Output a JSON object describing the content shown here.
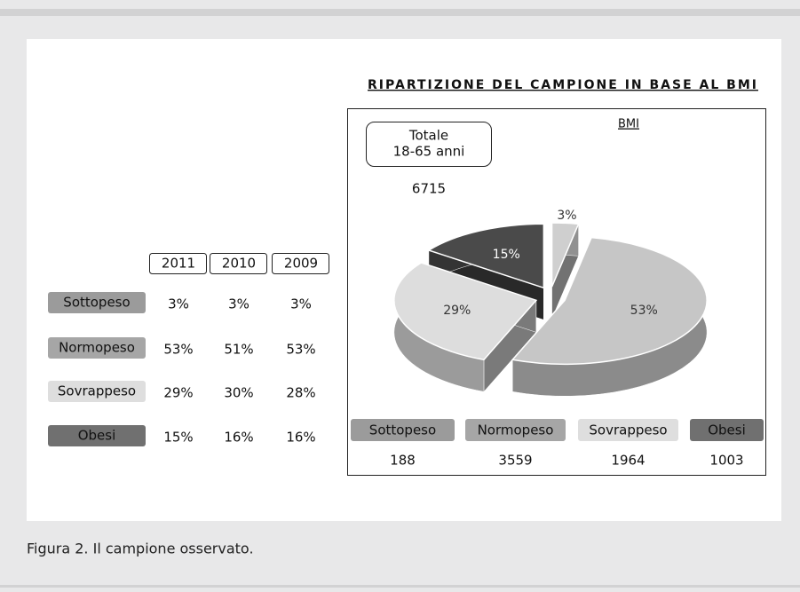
{
  "chart_data": {
    "type": "pie",
    "title": "RIPARTIZIONE DEL CAMPIONE IN BASE AL BMI",
    "subtitle": "BMI",
    "categories": [
      "Sottopeso",
      "Normopeso",
      "Sovrappeso",
      "Obesi"
    ],
    "values": [
      3,
      53,
      29,
      15
    ],
    "value_labels": [
      "3%",
      "53%",
      "29%",
      "15%"
    ],
    "colors": [
      "#cfcfcf",
      "#c6c6c6",
      "#dddddd",
      "#4a4a4a"
    ],
    "counts": [
      "188",
      "3559",
      "1964",
      "1003"
    ],
    "total_box": [
      "Totale",
      "18-65 anni"
    ],
    "total": "6715"
  },
  "table": {
    "columns": [
      "2011",
      "2010",
      "2009"
    ],
    "rows": [
      {
        "label": "Sottopeso",
        "values": [
          "3%",
          "3%",
          "3%"
        ]
      },
      {
        "label": "Normopeso",
        "values": [
          "53%",
          "51%",
          "53%"
        ]
      },
      {
        "label": "Sovrappeso",
        "values": [
          "29%",
          "30%",
          "28%"
        ]
      },
      {
        "label": "Obesi",
        "values": [
          "15%",
          "16%",
          "16%"
        ]
      }
    ]
  },
  "caption": "Figura 2. Il campione osservato."
}
